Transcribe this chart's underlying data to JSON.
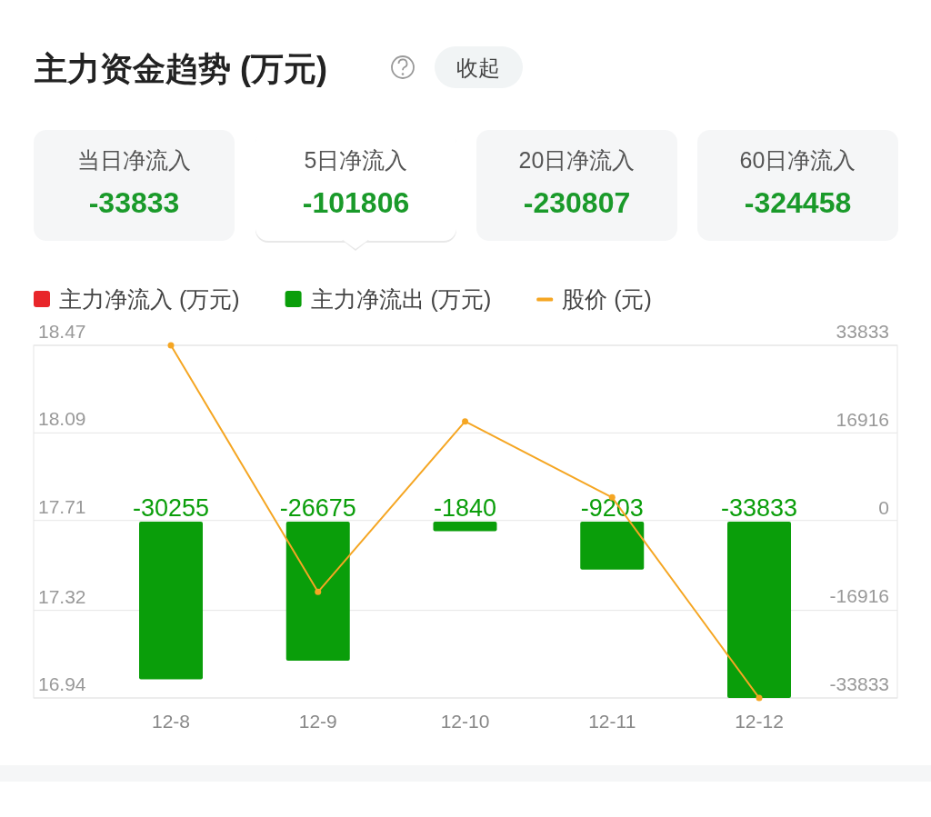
{
  "chart_data": [
    {
      "type": "other",
      "title": "主力资金趋势 (万元)",
      "annotations": [
        "收起",
        "当日净流入",
        "-33833",
        "5日净流入",
        "-101806",
        "20日净流入",
        "-230807",
        "60日净流入",
        "-324458"
      ]
    },
    {
      "type": "bar",
      "categories": [
        "12-8",
        "12-9",
        "12-10",
        "12-11",
        "12-12"
      ],
      "series": [
        {
          "name": "主力净流入 (万元)",
          "color": "#e8262a",
          "axis": "y2",
          "values": [
            null,
            null,
            null,
            null,
            null
          ]
        },
        {
          "name": "主力净流出 (万元)",
          "color": "#0a9e0a",
          "axis": "y2",
          "values": [
            -30255,
            -26675,
            -1840,
            -9203,
            -33833
          ],
          "value_labels": [
            "-30255",
            "-26675",
            "-1840",
            "-9203",
            "-33833"
          ]
        },
        {
          "name": "股价 (元)",
          "type": "line",
          "color": "#f5a623",
          "values": [
            18.47,
            17.4,
            18.14,
            17.81,
            16.94
          ]
        }
      ],
      "ylim": [
        16.94,
        18.47
      ],
      "yticks": [
        16.94,
        17.32,
        17.71,
        18.09,
        18.47
      ],
      "y2lim": [
        -33833,
        33833
      ],
      "y2ticks": [
        -33833,
        -16916,
        0,
        16916,
        33833
      ],
      "grid": "y",
      "legend": "top left",
      "marker": "circle",
      "line_style": "solid"
    }
  ]
}
